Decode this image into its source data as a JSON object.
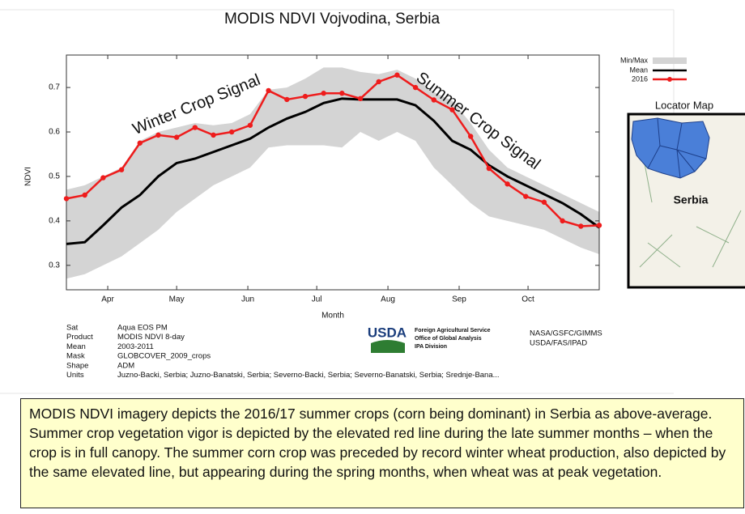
{
  "chart_data": {
    "type": "line",
    "title": "MODIS NDVI Vojvodina, Serbia",
    "xlabel": "Month",
    "ylabel": "NDVI",
    "x": [
      73,
      81,
      89,
      97,
      105,
      113,
      121,
      129,
      137,
      145,
      153,
      161,
      169,
      177,
      185,
      193,
      201,
      209,
      217,
      225,
      233,
      241,
      249,
      257,
      265,
      273,
      281,
      289,
      297,
      305
    ],
    "xlim": [
      73,
      305
    ],
    "xticks": [
      {
        "value": 91,
        "label": "Apr"
      },
      {
        "value": 121,
        "label": "May"
      },
      {
        "value": 152,
        "label": "Jun"
      },
      {
        "value": 182,
        "label": "Jul"
      },
      {
        "value": 213,
        "label": "Aug"
      },
      {
        "value": 244,
        "label": "Sep"
      },
      {
        "value": 274,
        "label": "Oct"
      }
    ],
    "ylim": [
      0.245,
      0.773
    ],
    "yticks": [
      0.3,
      0.4,
      0.5,
      0.6,
      0.7
    ],
    "band": {
      "name": "Min/Max",
      "color": "#d4d4d4",
      "lower": [
        0.27,
        0.28,
        0.3,
        0.32,
        0.35,
        0.38,
        0.42,
        0.45,
        0.48,
        0.5,
        0.52,
        0.565,
        0.57,
        0.57,
        0.57,
        0.565,
        0.6,
        0.58,
        0.6,
        0.58,
        0.52,
        0.48,
        0.44,
        0.41,
        0.4,
        0.39,
        0.38,
        0.36,
        0.34,
        0.325
      ],
      "upper": [
        0.47,
        0.48,
        0.5,
        0.52,
        0.58,
        0.6,
        0.61,
        0.62,
        0.615,
        0.62,
        0.64,
        0.695,
        0.7,
        0.72,
        0.745,
        0.745,
        0.735,
        0.73,
        0.74,
        0.72,
        0.69,
        0.67,
        0.62,
        0.56,
        0.52,
        0.5,
        0.48,
        0.46,
        0.44,
        0.42
      ]
    },
    "series": [
      {
        "name": "Mean",
        "color": "#000000",
        "marker": false,
        "values": [
          0.348,
          0.352,
          0.39,
          0.43,
          0.458,
          0.5,
          0.53,
          0.54,
          0.555,
          0.57,
          0.585,
          0.61,
          0.63,
          0.645,
          0.665,
          0.675,
          0.673,
          0.673,
          0.673,
          0.66,
          0.625,
          0.58,
          0.56,
          0.525,
          0.5,
          0.48,
          0.46,
          0.44,
          0.415,
          0.385
        ]
      },
      {
        "name": "2016",
        "color": "#ee1c1c",
        "marker": true,
        "values": [
          0.45,
          0.458,
          0.497,
          0.515,
          0.575,
          0.593,
          0.588,
          0.61,
          0.593,
          0.6,
          0.615,
          0.693,
          0.673,
          0.68,
          0.687,
          0.687,
          0.675,
          0.713,
          0.728,
          0.7,
          0.672,
          0.65,
          0.59,
          0.518,
          0.483,
          0.455,
          0.442,
          0.4,
          0.388,
          0.39
        ]
      }
    ],
    "annotations": [
      "Winter Crop Signal",
      "Summer Crop Signal"
    ]
  },
  "locator_map": {
    "title": "Locator Map",
    "label": "Serbia"
  },
  "metadata": [
    [
      "Sat",
      "Aqua EOS PM"
    ],
    [
      "Product",
      "MODIS NDVI 8-day"
    ],
    [
      "Mean",
      "2003-2011"
    ],
    [
      "Mask",
      "GLOBCOVER_2009_crops"
    ],
    [
      "Shape",
      "ADM"
    ],
    [
      "Units",
      "Juzno-Backi, Serbia; Juzno-Banatski, Serbia; Severno-Backi, Serbia; Severno-Banatski, Serbia; Srednje-Bana..."
    ]
  ],
  "logo": {
    "name": "USDA",
    "lines": [
      "Foreign Agricultural Service",
      "Office of Global Analysis",
      "IPA Division"
    ]
  },
  "credits": [
    "NASA/GSFC/GIMMS",
    "USDA/FAS/IPAD"
  ],
  "caption": "MODIS NDVI imagery depicts the 2016/17 summer crops (corn being dominant) in Serbia as above-average.  Summer crop vegetation vigor is depicted by the elevated red line during the late summer months – when the crop is in full canopy.  The summer corn crop was preceded by record winter wheat production, also depicted by the same elevated line, but appearing during the spring months, when wheat was at peak vegetation."
}
